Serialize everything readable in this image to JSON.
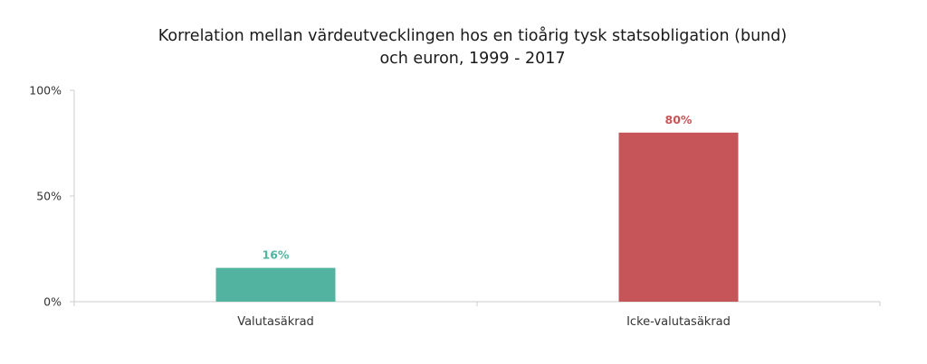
{
  "chart_data": {
    "type": "bar",
    "title": [
      "Korrelation mellan värdeutvecklingen  hos en tioårig tysk statsobligation (bund)",
      "och euron, 1999 - 2017"
    ],
    "categories": [
      "Valutasäkrad",
      "Icke-valutasäkrad"
    ],
    "values": [
      16,
      80
    ],
    "value_labels": [
      "16%",
      "80%"
    ],
    "colors": [
      "#52b4a0",
      "#c55558"
    ],
    "ylim": [
      0,
      100
    ],
    "yticks": [
      {
        "value": 0,
        "label": "0%"
      },
      {
        "value": 50,
        "label": "50%"
      },
      {
        "value": 100,
        "label": "100%"
      }
    ],
    "xlabel": "",
    "ylabel": "",
    "grid": false,
    "legend": "none"
  }
}
